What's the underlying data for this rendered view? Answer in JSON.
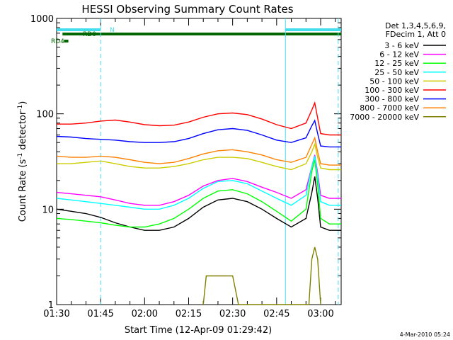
{
  "chart_data": {
    "type": "line",
    "title": "HESSI Observing Summary Count Rates",
    "xlabel": "Start Time (12-Apr-09 01:29:42)",
    "ylabel_main": "Count Rate (s",
    "ylabel_sup1": "-1",
    "ylabel_mid": " detector",
    "ylabel_sup2": "-1",
    "ylabel_end": ")",
    "yscale": "log",
    "ylim": [
      1,
      1000
    ],
    "xlim_minutes": [
      90,
      187
    ],
    "x_ticks": [
      {
        "m": 90,
        "label": "01:30"
      },
      {
        "m": 105,
        "label": "01:45"
      },
      {
        "m": 120,
        "label": "02:00"
      },
      {
        "m": 135,
        "label": "02:15"
      },
      {
        "m": 150,
        "label": "02:30"
      },
      {
        "m": 165,
        "label": "02:45"
      },
      {
        "m": 180,
        "label": "03:00"
      }
    ],
    "y_ticks": [
      {
        "v": 1,
        "label": "1"
      },
      {
        "v": 10,
        "label": "10"
      },
      {
        "v": 100,
        "label": "100"
      },
      {
        "v": 1000,
        "label": "1000"
      }
    ],
    "legend": {
      "header1": "Det 1,3,4,5,6,9,",
      "header2": "FDecim 1, Att 0"
    },
    "series": [
      {
        "name": "3 - 6 keV",
        "color": "#000000",
        "x": [
          90,
          95,
          100,
          105,
          110,
          115,
          120,
          125,
          130,
          135,
          140,
          145,
          150,
          155,
          160,
          165,
          170,
          175,
          177,
          178,
          179,
          180,
          183,
          187
        ],
        "y": [
          10,
          9.5,
          9,
          8.2,
          7.2,
          6.5,
          6,
          6,
          6.5,
          8,
          10.5,
          12.5,
          13,
          12,
          10,
          8,
          6.5,
          8,
          15,
          22,
          13,
          6.5,
          6,
          6
        ]
      },
      {
        "name": "6 - 12 keV",
        "color": "#ff00ff",
        "x": [
          90,
          95,
          100,
          105,
          110,
          115,
          120,
          125,
          130,
          135,
          140,
          145,
          150,
          155,
          160,
          165,
          170,
          175,
          177,
          178,
          179,
          180,
          183,
          187
        ],
        "y": [
          15,
          14.5,
          14,
          13.5,
          12.5,
          11.5,
          11,
          11,
          12,
          14,
          17.5,
          20,
          21,
          19.5,
          17,
          15,
          13,
          16,
          28,
          37,
          24,
          14,
          13,
          13
        ]
      },
      {
        "name": "12 - 25 keV",
        "color": "#00ff00",
        "x": [
          90,
          95,
          100,
          105,
          110,
          115,
          120,
          125,
          130,
          135,
          140,
          145,
          150,
          155,
          160,
          165,
          170,
          175,
          177,
          178,
          179,
          180,
          183,
          187
        ],
        "y": [
          8,
          7.8,
          7.5,
          7.2,
          6.8,
          6.5,
          6.5,
          7,
          8,
          10,
          13,
          15.5,
          16,
          14.5,
          12,
          9.5,
          7.5,
          10,
          25,
          33,
          18,
          8,
          7,
          7
        ]
      },
      {
        "name": "25 - 50 keV",
        "color": "#00ffff",
        "x": [
          90,
          95,
          100,
          105,
          110,
          115,
          120,
          125,
          130,
          135,
          140,
          145,
          150,
          155,
          160,
          165,
          170,
          175,
          177,
          178,
          179,
          180,
          183,
          187
        ],
        "y": [
          13,
          12.5,
          12,
          11.5,
          11,
          10.5,
          10,
          10,
          11,
          13,
          16.5,
          19.5,
          20,
          18.5,
          15.5,
          13,
          11,
          14,
          28,
          36,
          22,
          12,
          11,
          11
        ]
      },
      {
        "name": "50 - 100 keV",
        "color": "#cccc00",
        "x": [
          90,
          95,
          100,
          105,
          110,
          115,
          120,
          125,
          130,
          135,
          140,
          145,
          150,
          155,
          160,
          165,
          170,
          175,
          177,
          178,
          179,
          180,
          183,
          187
        ],
        "y": [
          30,
          30,
          31,
          32,
          30,
          28,
          27,
          27,
          28,
          30,
          33,
          35,
          35,
          34,
          31,
          28,
          26,
          30,
          40,
          48,
          35,
          27,
          26,
          26
        ]
      },
      {
        "name": "100 - 300 keV",
        "color": "#ff0000",
        "x": [
          90,
          95,
          100,
          105,
          110,
          115,
          120,
          125,
          130,
          135,
          140,
          145,
          150,
          155,
          160,
          165,
          170,
          175,
          177,
          178,
          179,
          180,
          183,
          187
        ],
        "y": [
          78,
          78,
          80,
          84,
          86,
          82,
          77,
          75,
          76,
          82,
          92,
          100,
          102,
          98,
          88,
          77,
          70,
          80,
          110,
          130,
          90,
          62,
          60,
          60
        ]
      },
      {
        "name": "300 - 800 keV",
        "color": "#0000ff",
        "x": [
          90,
          95,
          100,
          105,
          110,
          115,
          120,
          125,
          130,
          135,
          140,
          145,
          150,
          155,
          160,
          165,
          170,
          175,
          177,
          178,
          179,
          180,
          183,
          187
        ],
        "y": [
          58,
          57,
          55,
          54,
          53,
          51,
          50,
          50,
          51,
          55,
          62,
          68,
          70,
          67,
          60,
          53,
          50,
          56,
          75,
          85,
          62,
          46,
          45,
          45
        ]
      },
      {
        "name": "800 - 7000 keV",
        "color": "#ff8000",
        "x": [
          90,
          95,
          100,
          105,
          110,
          115,
          120,
          125,
          130,
          135,
          140,
          145,
          150,
          155,
          160,
          165,
          170,
          175,
          177,
          178,
          179,
          180,
          183,
          187
        ],
        "y": [
          36,
          35,
          35,
          36,
          35,
          33,
          31,
          30,
          31,
          34,
          38,
          41,
          42,
          40,
          37,
          33,
          31,
          35,
          48,
          56,
          40,
          30,
          29,
          29
        ]
      },
      {
        "name": "7000 - 20000 keV",
        "color": "#808000",
        "x": [
          140,
          141,
          145,
          150,
          152,
          176,
          177,
          178,
          179,
          180
        ],
        "y": [
          1,
          2,
          2,
          2,
          1,
          1,
          3,
          4,
          3,
          1
        ]
      }
    ],
    "bars": [
      {
        "label": "N",
        "color": "#44ddee",
        "ranges": [
          [
            90,
            105
          ],
          [
            168,
            187
          ]
        ]
      },
      {
        "label": "RD0",
        "color": "#006600",
        "ranges": [
          [
            92,
            187
          ]
        ]
      },
      {
        "label": "RD4",
        "color": "#006600",
        "ranges": [
          [
            92.5,
            94
          ]
        ]
      }
    ],
    "vlines": [
      {
        "m": 105,
        "style": "dashed",
        "color": "#44ddee"
      },
      {
        "m": 168,
        "style": "solid",
        "color": "#44ddee"
      },
      {
        "m": 186,
        "style": "dashed",
        "color": "#44ddee"
      }
    ],
    "footer": "4-Mar-2010 05:24"
  }
}
